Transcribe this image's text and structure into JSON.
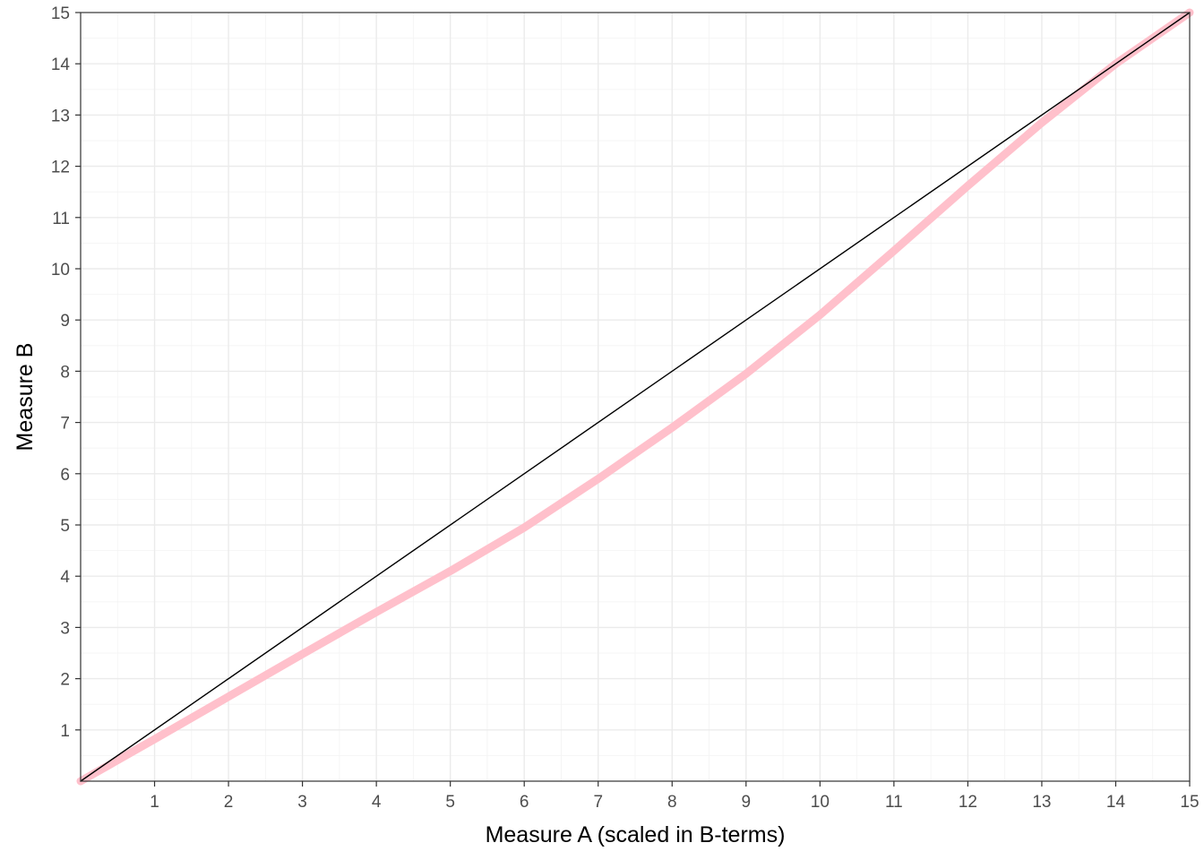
{
  "chart_data": {
    "type": "line",
    "title": "",
    "xlabel": "Measure A (scaled in B-terms)",
    "ylabel": "Measure B",
    "xlim": [
      0,
      15
    ],
    "ylim": [
      0,
      15
    ],
    "x_ticks": [
      "1",
      "2",
      "3",
      "4",
      "5",
      "6",
      "7",
      "8",
      "9",
      "10",
      "11",
      "12",
      "13",
      "14",
      "15"
    ],
    "y_ticks": [
      "1",
      "2",
      "3",
      "4",
      "5",
      "6",
      "7",
      "8",
      "9",
      "10",
      "11",
      "12",
      "13",
      "14",
      "15"
    ],
    "grid": true,
    "legend": "none",
    "series": [
      {
        "color": "#ffc0cb",
        "x": [
          0,
          1,
          2,
          3,
          4,
          5,
          6,
          7,
          8,
          9,
          10,
          11,
          12,
          13,
          14,
          15
        ],
        "y": [
          0,
          0.82,
          1.65,
          2.48,
          3.3,
          4.1,
          4.95,
          5.9,
          6.9,
          7.95,
          9.1,
          10.35,
          11.62,
          12.85,
          14.0,
          15.0
        ]
      },
      {
        "color": "#000000",
        "x": [
          0,
          15
        ],
        "y": [
          0,
          15
        ]
      }
    ]
  }
}
